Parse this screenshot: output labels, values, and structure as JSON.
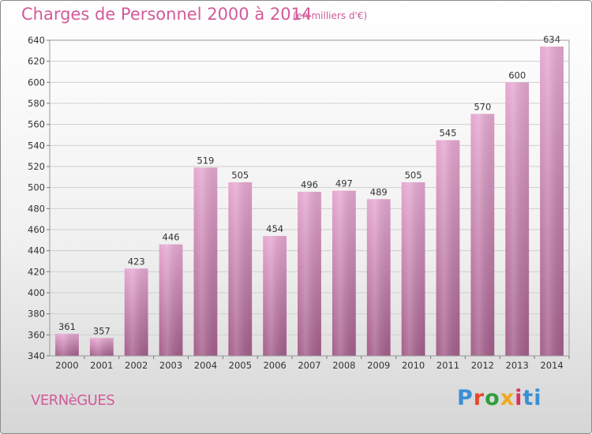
{
  "header": {
    "title": "Charges de Personnel 2000 à 2014",
    "subtitle": "(en milliers d'€)"
  },
  "footer": {
    "commune": "VERNèGUES",
    "brand": "Proxiti"
  },
  "colors": {
    "bar_top": "#e6a8d1",
    "bar_bottom": "#a45f8b",
    "title": "#d35a9a",
    "grid": "#cfcfcf"
  },
  "chart_data": {
    "type": "bar",
    "categories": [
      "2000",
      "2001",
      "2002",
      "2003",
      "2004",
      "2005",
      "2006",
      "2007",
      "2008",
      "2009",
      "2010",
      "2011",
      "2012",
      "2013",
      "2014"
    ],
    "values": [
      361,
      357,
      423,
      446,
      519,
      505,
      454,
      496,
      497,
      489,
      505,
      545,
      570,
      600,
      634
    ],
    "title": "Charges de Personnel 2000 à 2014",
    "subtitle": "(en milliers d'€)",
    "xlabel": "",
    "ylabel": "",
    "ylim": [
      340,
      640
    ],
    "yticks": [
      340,
      360,
      380,
      400,
      420,
      440,
      460,
      480,
      500,
      520,
      540,
      560,
      580,
      600,
      620,
      640
    ],
    "grid": true,
    "legend": "none",
    "data_labels": true
  }
}
